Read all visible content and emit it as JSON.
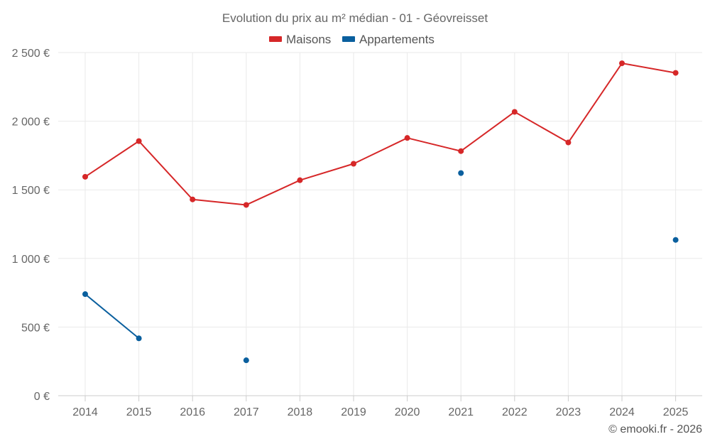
{
  "chart_data": {
    "type": "line",
    "title": "Evolution du prix au m² médian - 01 - Géovreisset",
    "categories": [
      "2014",
      "2015",
      "2016",
      "2017",
      "2018",
      "2019",
      "2020",
      "2021",
      "2022",
      "2023",
      "2024",
      "2025"
    ],
    "ylim": [
      0,
      2500
    ],
    "yticks": [
      0,
      500,
      1000,
      1500,
      2000,
      2500
    ],
    "ytick_labels": [
      "0 €",
      "500 €",
      "1 000 €",
      "1 500 €",
      "2 000 €",
      "2 500 €"
    ],
    "xlabel": "",
    "ylabel": "",
    "grid": true,
    "legend_position": "top-center",
    "series": [
      {
        "name": "Maisons",
        "color": "#d62728",
        "values": [
          1595,
          1855,
          1430,
          1390,
          1570,
          1690,
          1878,
          1782,
          2068,
          1845,
          2422,
          2352
        ]
      },
      {
        "name": "Appartements",
        "color": "#0a5f9e",
        "values": [
          740,
          418,
          null,
          258,
          null,
          null,
          null,
          1622,
          null,
          null,
          null,
          1135
        ]
      }
    ]
  },
  "credit": "© emooki.fr - 2026"
}
